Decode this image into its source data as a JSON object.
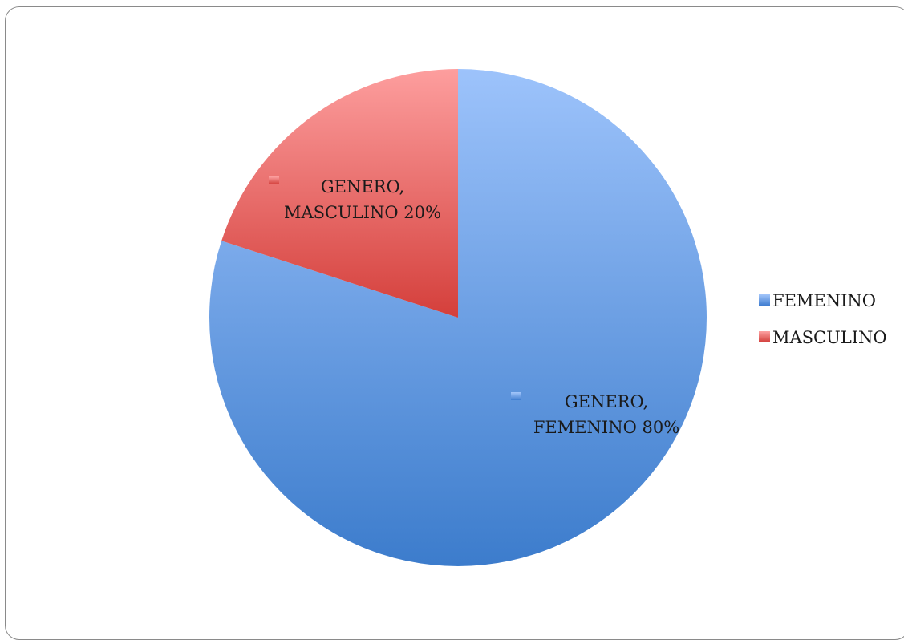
{
  "chart_data": {
    "type": "pie",
    "categories": [
      "FEMENINO",
      "MASCULINO"
    ],
    "values": [
      80,
      20
    ],
    "colors": [
      "#4F81BD",
      "#C0504D"
    ],
    "data_labels": [
      {
        "line1": "GENERO,",
        "line2": "FEMENINO 80%"
      },
      {
        "line1": "GENERO,",
        "line2": "MASCULINO 20%"
      }
    ],
    "legend_position": "right"
  }
}
